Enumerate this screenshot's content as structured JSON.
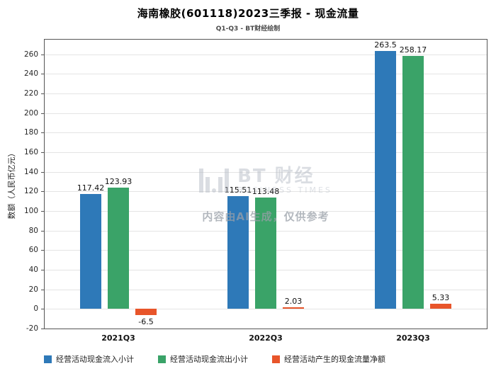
{
  "title": "海南橡胶(601118)2023三季报 - 现金流量",
  "subtitle": "Q1-Q3 - BT财经绘制",
  "watermark": {
    "brand": "BT 财经",
    "brand_sub": "BUSINESS TIMES",
    "disclaimer": "内容由AI生成，仅供参考"
  },
  "chart_data": {
    "type": "bar",
    "categories": [
      "2021Q3",
      "2022Q3",
      "2023Q3"
    ],
    "series": [
      {
        "name": "经营活动现金流入小计",
        "color": "#2e79b8",
        "values": [
          117.42,
          115.51,
          263.5
        ]
      },
      {
        "name": "经营活动现金流出小计",
        "color": "#3aa368",
        "values": [
          123.93,
          113.48,
          258.17
        ]
      },
      {
        "name": "经营活动产生的现金流量净额",
        "color": "#e8552a",
        "values": [
          -6.5,
          2.03,
          5.33
        ]
      }
    ],
    "xlabel": "",
    "ylabel": "数额（人民币亿元）",
    "ylim": [
      -20,
      275
    ],
    "ytick_step": 20,
    "grid": true,
    "legend_position": "bottom"
  }
}
